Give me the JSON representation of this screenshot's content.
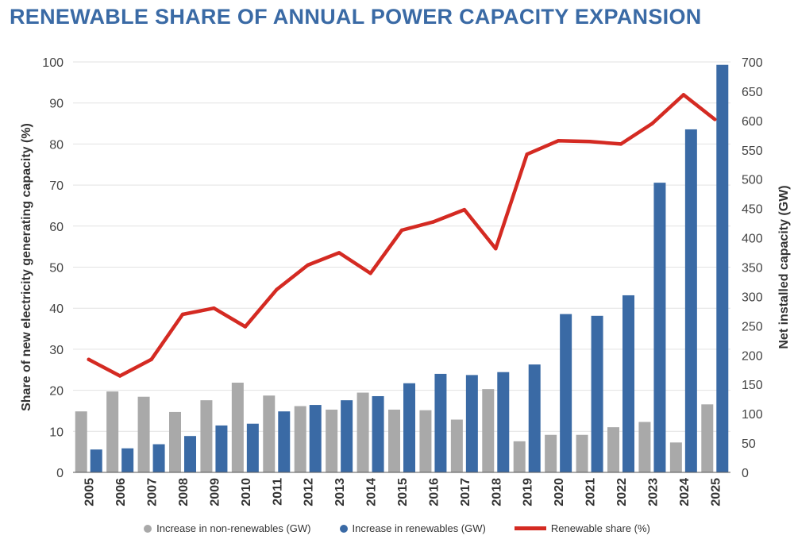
{
  "title": "RENEWABLE SHARE OF ANNUAL POWER CAPACITY EXPANSION",
  "colors": {
    "title": "#3a6aa5",
    "non_renewables": "#a9a9a9",
    "renewables": "#3a6aa5",
    "share_line": "#d42a22"
  },
  "chart_data": {
    "type": "bar",
    "categories": [
      "2005",
      "2006",
      "2007",
      "2008",
      "2009",
      "2010",
      "2011",
      "2012",
      "2013",
      "2014",
      "2015",
      "2016",
      "2017",
      "2018",
      "2019",
      "2020",
      "2021",
      "2022",
      "2023",
      "2024",
      "2025"
    ],
    "series": [
      {
        "name": "Increase in non-renewables (GW)",
        "type": "bar",
        "axis": "right",
        "values": [
          104,
          138,
          129,
          103,
          123,
          153,
          131,
          113,
          107,
          136,
          107,
          106,
          90,
          142,
          53,
          64,
          64,
          77,
          86,
          51,
          116
        ]
      },
      {
        "name": "Increase in renewables (GW)",
        "type": "bar",
        "axis": "right",
        "values": [
          39,
          41,
          48,
          62,
          80,
          83,
          104,
          115,
          123,
          130,
          152,
          168,
          166,
          171,
          184,
          270,
          267,
          302,
          494,
          585,
          695
        ]
      },
      {
        "name": "Renewable share (%)",
        "type": "line",
        "axis": "left",
        "values": [
          27.5,
          23.5,
          27.5,
          38.5,
          40,
          35.5,
          44.5,
          50.5,
          53.5,
          48.5,
          59,
          61,
          64,
          54.5,
          77.5,
          80.8,
          80.6,
          80,
          85,
          92,
          86
        ]
      }
    ],
    "ylabel": "Share of new electricity generating capacity (%)",
    "ylabel_right": "Net installed capacity (GW)",
    "ylim": [
      0,
      100
    ],
    "ylim_right": [
      0,
      700
    ],
    "yticks": [
      "0",
      "10",
      "20",
      "30",
      "40",
      "50",
      "60",
      "70",
      "80",
      "90",
      "100"
    ],
    "yticks_right": [
      "0",
      "50",
      "100",
      "150",
      "200",
      "250",
      "300",
      "350",
      "400",
      "450",
      "500",
      "550",
      "600",
      "650",
      "700"
    ],
    "grid": true,
    "legend_position": "bottom"
  }
}
